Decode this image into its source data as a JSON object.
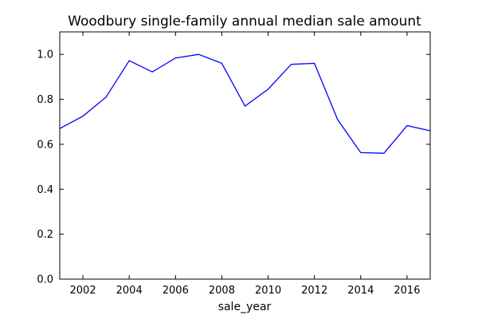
{
  "chart_data": {
    "type": "line",
    "title": "Woodbury single-family annual median sale amount",
    "xlabel": "sale_year",
    "ylabel": "",
    "xlim": [
      2001,
      2017
    ],
    "ylim": [
      0.0,
      1.1
    ],
    "xticks": [
      2002,
      2004,
      2006,
      2008,
      2010,
      2012,
      2014,
      2016
    ],
    "xtick_labels": [
      "2002",
      "2004",
      "2006",
      "2008",
      "2010",
      "2012",
      "2014",
      "2016"
    ],
    "yticks": [
      0.0,
      0.2,
      0.4,
      0.6,
      0.8,
      1.0
    ],
    "ytick_labels": [
      "0.0",
      "0.2",
      "0.4",
      "0.6",
      "0.8",
      "1.0"
    ],
    "grid": false,
    "legend": "none",
    "series": [
      {
        "color": "#0000ff",
        "x": [
          2001,
          2002,
          2003,
          2004,
          2005,
          2006,
          2007,
          2008,
          2009,
          2010,
          2011,
          2012,
          2013,
          2014,
          2015,
          2016,
          2017
        ],
        "y": [
          0.67,
          0.725,
          0.81,
          0.972,
          0.922,
          0.984,
          1.0,
          0.96,
          0.77,
          0.845,
          0.956,
          0.96,
          0.71,
          0.563,
          0.56,
          0.683,
          0.66
        ]
      }
    ]
  }
}
